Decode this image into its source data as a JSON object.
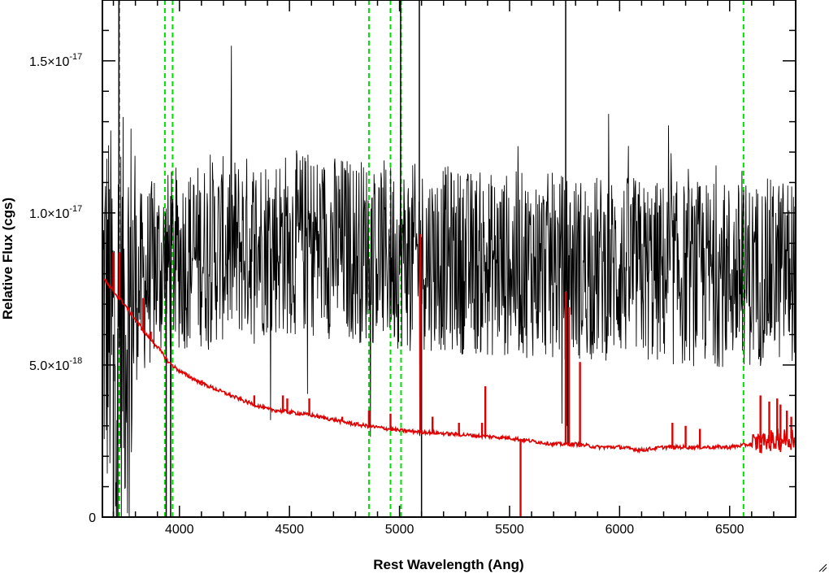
{
  "chart_data": {
    "type": "line",
    "title": "",
    "xlabel": "Rest Wavelength (Ang)",
    "ylabel": "Relative Flux (cgs)",
    "xlim": [
      3650,
      6800
    ],
    "ylim": [
      0,
      1.7e-17
    ],
    "x_ticks": [
      {
        "value": 4000,
        "label": "4000"
      },
      {
        "value": 4500,
        "label": "4500"
      },
      {
        "value": 5000,
        "label": "5000"
      },
      {
        "value": 5500,
        "label": "5500"
      },
      {
        "value": 6000,
        "label": "6000"
      },
      {
        "value": 6500,
        "label": "6500"
      }
    ],
    "y_ticks": [
      {
        "value": 0,
        "mantissa": "0",
        "exponent": ""
      },
      {
        "value": 5e-18,
        "mantissa": "5.0×10",
        "exponent": "-18"
      },
      {
        "value": 1e-17,
        "mantissa": "1.0×10",
        "exponent": "-17"
      },
      {
        "value": 1.5e-17,
        "mantissa": "1.5×10",
        "exponent": "-17"
      }
    ],
    "series": [
      {
        "color": "#000000",
        "style": "noisy",
        "noise_amplitude": 2.2e-18,
        "x": [
          3660,
          3700,
          3750,
          3800,
          3900,
          4000,
          4200,
          4400,
          4600,
          4800,
          5000,
          5200,
          5400,
          5600,
          5800,
          6000,
          6200,
          6400,
          6600,
          6800
        ],
        "values": [
          7e-18,
          6e-18,
          6.5e-18,
          7.5e-18,
          8.2e-18,
          8.5e-18,
          8.8e-18,
          9e-18,
          9e-18,
          8.8e-18,
          8.6e-18,
          8.5e-18,
          8.3e-18,
          8.3e-18,
          8.2e-18,
          8.2e-18,
          8e-18,
          8e-18,
          8e-18,
          8.2e-18
        ],
        "spikes": [
          {
            "x": 3725,
            "value": 1.7e-17
          },
          {
            "x": 3700,
            "value": 0
          },
          {
            "x": 3720,
            "value": 0
          },
          {
            "x": 3940,
            "value": 0
          },
          {
            "x": 3960,
            "value": 0
          },
          {
            "x": 5005,
            "value": 1.7e-17
          },
          {
            "x": 5090,
            "value": 1.7e-17
          },
          {
            "x": 5100,
            "value": 0
          },
          {
            "x": 5755,
            "value": 1.7e-17
          },
          {
            "x": 5760,
            "value": 3e-18
          }
        ]
      },
      {
        "color": "#e00000",
        "style": "smooth",
        "x": [
          3650,
          3690,
          3750,
          3800,
          3850,
          3900,
          3950,
          4000,
          4100,
          4200,
          4300,
          4400,
          4500,
          4600,
          4700,
          4800,
          4900,
          5000,
          5100,
          5200,
          5300,
          5400,
          5500,
          5600,
          5700,
          5800,
          5900,
          6000,
          6100,
          6200,
          6300,
          6400,
          6500,
          6600,
          6700,
          6800
        ],
        "values": [
          7.9e-18,
          7.5e-18,
          7e-18,
          6.5e-18,
          6e-18,
          5.6e-18,
          5.1e-18,
          4.8e-18,
          4.4e-18,
          4.1e-18,
          3.8e-18,
          3.55e-18,
          3.45e-18,
          3.35e-18,
          3.2e-18,
          3.05e-18,
          2.95e-18,
          2.85e-18,
          2.8e-18,
          2.75e-18,
          2.7e-18,
          2.65e-18,
          2.6e-18,
          2.5e-18,
          2.4e-18,
          2.4e-18,
          2.3e-18,
          2.3e-18,
          2.2e-18,
          2.3e-18,
          2.3e-18,
          2.3e-18,
          2.3e-18,
          2.4e-18,
          2.5e-18,
          2.6e-18
        ],
        "lines": [
          {
            "x": 3700,
            "value": 8.7e-18
          },
          {
            "x": 3728,
            "value": 8.7e-18
          },
          {
            "x": 3835,
            "value": 7.2e-18
          },
          {
            "x": 3870,
            "value": 6.1e-18
          },
          {
            "x": 4102,
            "value": 4.5e-18
          },
          {
            "x": 4340,
            "value": 4e-18
          },
          {
            "x": 4470,
            "value": 4e-18
          },
          {
            "x": 4490,
            "value": 3.9e-18
          },
          {
            "x": 4590,
            "value": 3.9e-18
          },
          {
            "x": 4740,
            "value": 3.3e-18
          },
          {
            "x": 4861,
            "value": 3.5e-18
          },
          {
            "x": 4959,
            "value": 3.4e-18
          },
          {
            "x": 5095,
            "value": 9.3e-18
          },
          {
            "x": 5150,
            "value": 3.3e-18
          },
          {
            "x": 5270,
            "value": 3.1e-18
          },
          {
            "x": 5375,
            "value": 3.1e-18
          },
          {
            "x": 5390,
            "value": 4.3e-18
          },
          {
            "x": 5550,
            "value": 0
          },
          {
            "x": 5755,
            "value": 7.4e-18
          },
          {
            "x": 5770,
            "value": 6.9e-18
          },
          {
            "x": 5820,
            "value": 5.1e-18
          },
          {
            "x": 6240,
            "value": 3.1e-18
          },
          {
            "x": 6300,
            "value": 3e-18
          },
          {
            "x": 6365,
            "value": 2.9e-18
          },
          {
            "x": 6640,
            "value": 4e-18
          },
          {
            "x": 6680,
            "value": 3.8e-18
          },
          {
            "x": 6716,
            "value": 3.9e-18
          },
          {
            "x": 6731,
            "value": 3.7e-18
          },
          {
            "x": 6760,
            "value": 3.5e-18
          },
          {
            "x": 6780,
            "value": 3.3e-18
          }
        ]
      }
    ],
    "reference_lines": [
      {
        "x": 3727,
        "color": "#00e000",
        "dash": "dashed"
      },
      {
        "x": 3934,
        "color": "#00e000",
        "dash": "dashed"
      },
      {
        "x": 3969,
        "color": "#00e000",
        "dash": "dashed"
      },
      {
        "x": 4861,
        "color": "#00e000",
        "dash": "dashed"
      },
      {
        "x": 4959,
        "color": "#00e000",
        "dash": "dashed"
      },
      {
        "x": 5007,
        "color": "#00e000",
        "dash": "dashed"
      },
      {
        "x": 6563,
        "color": "#00e000",
        "dash": "dashed"
      }
    ],
    "grid": false,
    "legend": "none"
  }
}
